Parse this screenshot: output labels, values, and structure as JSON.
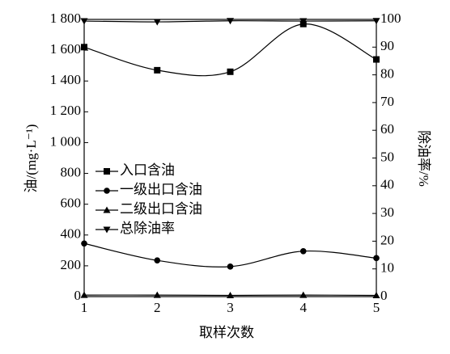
{
  "chart_data": {
    "type": "line",
    "x": [
      1,
      2,
      3,
      4,
      5
    ],
    "xlim": [
      1,
      5
    ],
    "xticks": [
      1,
      2,
      3,
      4,
      5
    ],
    "xlabel": "取样次数",
    "ylabel": "油/(mg·L⁻¹)",
    "y2label": "除油率/%",
    "ylim": [
      0,
      1800
    ],
    "yticks": [
      0,
      200,
      400,
      600,
      800,
      {
        "value": 1000,
        "label": "1 000"
      },
      {
        "value": 1200,
        "label": "1 200"
      },
      {
        "value": 1400,
        "label": "1 400"
      },
      {
        "value": 1600,
        "label": "1 600"
      },
      {
        "value": 1800,
        "label": "1 800"
      }
    ],
    "y2lim": [
      0,
      100
    ],
    "y2ticks": [
      0,
      10,
      20,
      30,
      40,
      50,
      60,
      70,
      80,
      90,
      100
    ],
    "legend_position": "left",
    "series": [
      {
        "name": "入口含油",
        "color": "#000000",
        "marker": "square",
        "values": [
          1620,
          1470,
          1460,
          1770,
          1540
        ]
      },
      {
        "name": "一级出口含油",
        "color": "#000000",
        "marker": "circle",
        "values": [
          345,
          235,
          195,
          295,
          250
        ]
      },
      {
        "name": "二级出口含油",
        "color": "#000000",
        "marker": "triangle-up",
        "values": [
          10,
          10,
          8,
          10,
          8
        ]
      },
      {
        "name": "总除油率",
        "color": "#000000",
        "marker": "triangle-down",
        "axis": "y2",
        "values": [
          99.4,
          99.1,
          99.5,
          99.4,
          99.5
        ]
      }
    ]
  }
}
